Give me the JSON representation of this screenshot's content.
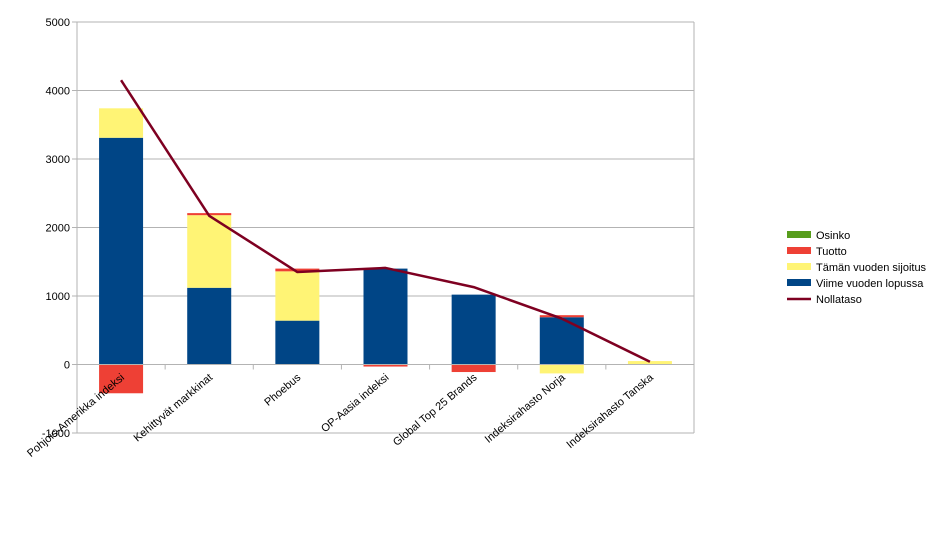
{
  "chart_data": {
    "type": "bar",
    "stacked": true,
    "categories": [
      "Pohjois-Amerikka indeksi",
      "Kehittyvät markkinat",
      "Phoebus",
      "OP-Aasia indeksi",
      "Global Top 25 Brands",
      "Indeksirahasto Norja",
      "Indeksirahasto Tanska"
    ],
    "series": [
      {
        "name": "Osinko",
        "color": "#579d1c",
        "values": [
          0,
          0,
          0,
          0,
          0,
          0,
          0
        ]
      },
      {
        "name": "Tuotto",
        "color": "#ee4035",
        "values": [
          -420,
          30,
          40,
          -30,
          -110,
          30,
          0
        ]
      },
      {
        "name": "Tämän vuoden sijoitus",
        "color": "#fff475",
        "values": [
          430,
          1060,
          720,
          0,
          0,
          -130,
          50
        ]
      },
      {
        "name": "Viime vuoden lopussa",
        "color": "#004586",
        "values": [
          3310,
          1120,
          640,
          1400,
          1020,
          690,
          0
        ]
      }
    ],
    "line_series": {
      "name": "Nollataso",
      "color": "#7e0021",
      "values": [
        4150,
        2170,
        1350,
        1410,
        1130,
        670,
        40
      ]
    },
    "ylim": [
      -1000,
      5000
    ],
    "yticks": [
      "5000",
      "4000",
      "3000",
      "2000",
      "1000",
      "0",
      "-1000"
    ],
    "title": "",
    "xlabel": "",
    "ylabel": "",
    "grid": true,
    "legend_position": "right"
  }
}
